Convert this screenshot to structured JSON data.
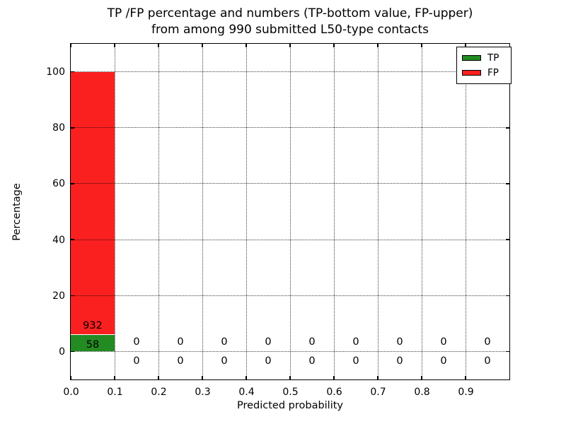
{
  "title": {
    "line1": "TP /FP percentage and numbers (TP-bottom value, FP-upper)",
    "line2": "from among 990 submitted L50-type contacts"
  },
  "axes": {
    "xlabel": "Predicted probability",
    "ylabel": "Percentage"
  },
  "legend": {
    "items": [
      {
        "label": "TP",
        "color": "#228b22"
      },
      {
        "label": "FP",
        "color": "#fb2020"
      }
    ]
  },
  "chart_data": {
    "type": "bar",
    "stacked": true,
    "title": "TP /FP percentage and numbers (TP-bottom value, FP-upper) from among 990 submitted L50-type contacts",
    "xlabel": "Predicted probability",
    "ylabel": "Percentage",
    "xlim": [
      0.0,
      1.0
    ],
    "ylim": [
      -10,
      110
    ],
    "grid": "dotted both axes, drawn above bars",
    "legend_position": "upper right",
    "total_contacts": 990,
    "bin_width": 0.1,
    "bin_starts": [
      0.0,
      0.1,
      0.2,
      0.3,
      0.4,
      0.5,
      0.6,
      0.7,
      0.8,
      0.9
    ],
    "x_tick_labels": [
      "0.0",
      "0.1",
      "0.2",
      "0.3",
      "0.4",
      "0.5",
      "0.6",
      "0.7",
      "0.8",
      "0.9"
    ],
    "x_tick_values": [
      0.0,
      0.1,
      0.2,
      0.3,
      0.4,
      0.5,
      0.6,
      0.7,
      0.8,
      0.9
    ],
    "y_tick_labels": [
      "0",
      "20",
      "40",
      "60",
      "80",
      "100"
    ],
    "y_tick_values": [
      0,
      20,
      40,
      60,
      80,
      100
    ],
    "series": [
      {
        "name": "TP",
        "color": "#228b22",
        "counts": [
          58,
          0,
          0,
          0,
          0,
          0,
          0,
          0,
          0,
          0
        ],
        "percent": [
          5.86,
          0,
          0,
          0,
          0,
          0,
          0,
          0,
          0,
          0
        ]
      },
      {
        "name": "FP",
        "color": "#fb2020",
        "counts": [
          932,
          0,
          0,
          0,
          0,
          0,
          0,
          0,
          0,
          0
        ],
        "percent": [
          94.14,
          0,
          0,
          0,
          0,
          0,
          0,
          0,
          0,
          0
        ]
      }
    ]
  }
}
